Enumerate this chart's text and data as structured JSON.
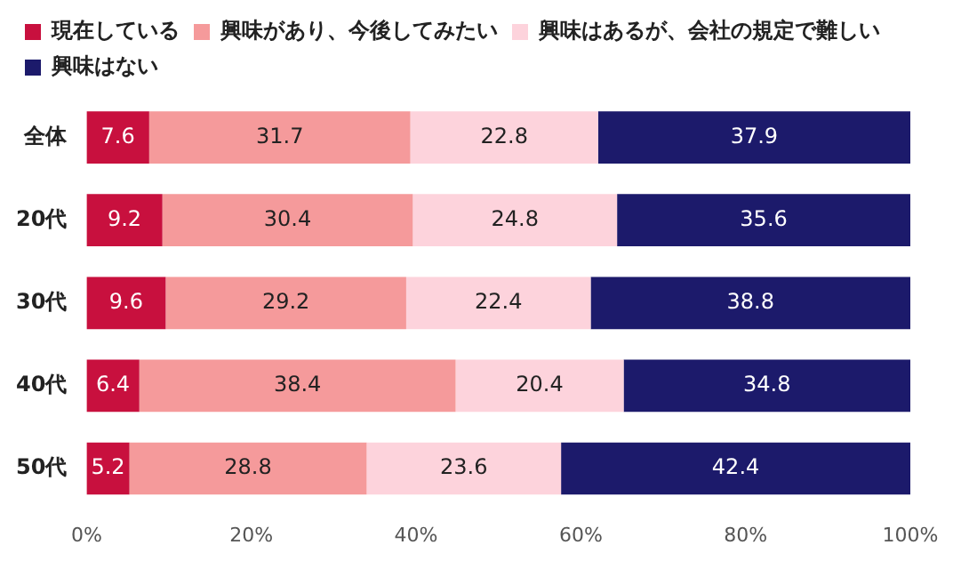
{
  "chart_data": {
    "type": "bar",
    "orientation": "horizontal",
    "stacked": true,
    "data_labels": true,
    "legend": "top left",
    "grid": false,
    "categories": [
      "全体",
      "20代",
      "30代",
      "40代",
      "50代"
    ],
    "series": [
      {
        "name": "現在している",
        "color": "#c8103e",
        "values": [
          7.6,
          9.2,
          9.6,
          6.4,
          5.2
        ]
      },
      {
        "name": "興味があり、今後してみたい",
        "color": "#f59a9b",
        "values": [
          31.7,
          30.4,
          29.2,
          38.4,
          28.8
        ]
      },
      {
        "name": "興味はあるが、会社の規定で難しい",
        "color": "#fdd3dc",
        "values": [
          22.8,
          24.8,
          22.4,
          20.4,
          23.6
        ]
      },
      {
        "name": "興味はない",
        "color": "#1c1a6b",
        "values": [
          37.9,
          35.6,
          38.8,
          34.8,
          42.4
        ]
      }
    ],
    "xlim": [
      0,
      100
    ],
    "xticks": [
      {
        "value": 0,
        "label": "0%"
      },
      {
        "value": 20,
        "label": "20%"
      },
      {
        "value": 40,
        "label": "40%"
      },
      {
        "value": 60,
        "label": "60%"
      },
      {
        "value": 80,
        "label": "80%"
      },
      {
        "value": 100,
        "label": "100%"
      }
    ]
  }
}
